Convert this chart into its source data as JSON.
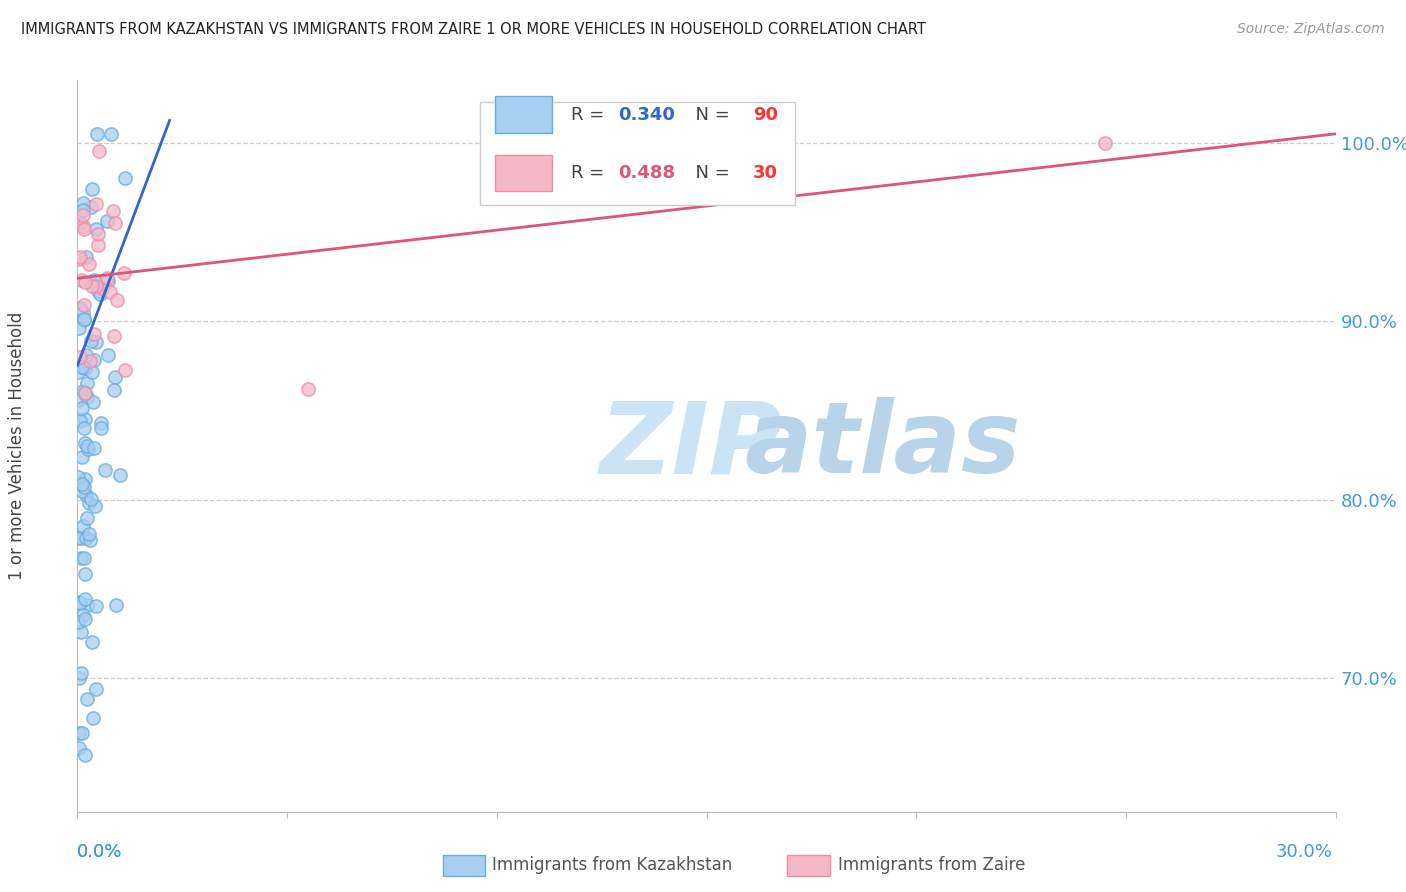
{
  "title": "IMMIGRANTS FROM KAZAKHSTAN VS IMMIGRANTS FROM ZAIRE 1 OR MORE VEHICLES IN HOUSEHOLD CORRELATION CHART",
  "source": "Source: ZipAtlas.com",
  "ylabel": "1 or more Vehicles in Household",
  "x_min": 0.0,
  "x_max": 0.3,
  "y_min": 0.625,
  "y_max": 1.035,
  "kazakhstan_R": 0.34,
  "kazakhstan_N": 90,
  "zaire_R": 0.488,
  "zaire_N": 30,
  "kazakhstan_color_face": "#A8CEF0",
  "kazakhstan_color_edge": "#6AAEE0",
  "zaire_color_face": "#F5B8C8",
  "zaire_color_edge": "#E890A8",
  "kazakhstan_line_color": "#3366CC",
  "zaire_line_color": "#DD5577",
  "r_val_kaz_color": "#3366CC",
  "n_val_kaz_color": "#FF3333",
  "r_val_zaire_color": "#DD5577",
  "n_val_zaire_color": "#FF3333",
  "legend_label_kaz": "Immigrants from Kazakhstan",
  "legend_label_zaire": "Immigrants from Zaire",
  "grid_color": "#CCCCCC",
  "ytick_color": "#4499DD",
  "xtick_color": "#4499DD",
  "watermark_zip": "ZIP",
  "watermark_atlas": "atlas",
  "watermark_color_zip": "#D0E8F8",
  "watermark_color_atlas": "#C8DCF0"
}
